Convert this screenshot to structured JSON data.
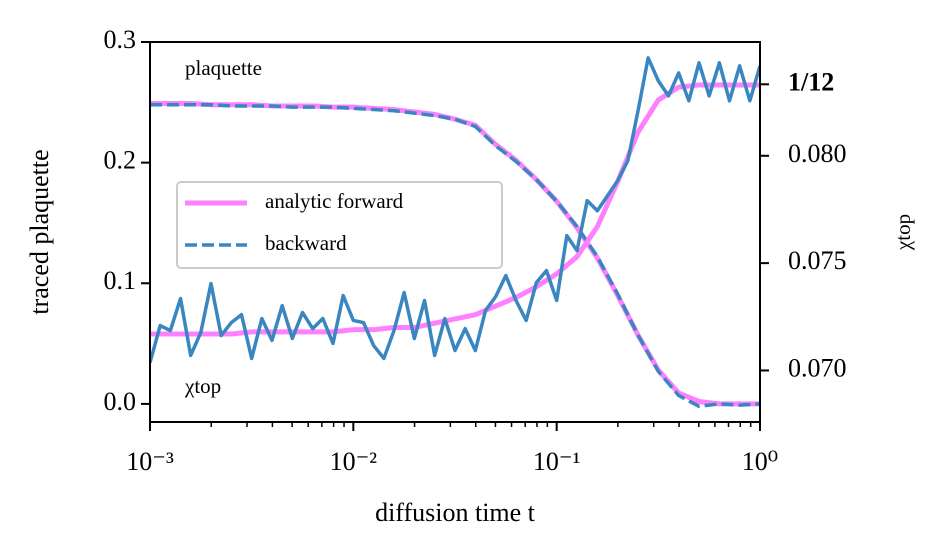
{
  "chart_data": {
    "type": "line",
    "xlabel": "diffusion time t",
    "ylabel": "traced plaquette",
    "y2label": "χtop",
    "annotations": [
      "plaquette",
      "χtop"
    ],
    "xscale": "log",
    "xlim": [
      0.001,
      1.0
    ],
    "xticks": [
      {
        "value": 0.001,
        "label": "10⁻³"
      },
      {
        "value": 0.01,
        "label": "10⁻²"
      },
      {
        "value": 0.1,
        "label": "10⁻¹"
      },
      {
        "value": 1.0,
        "label": "10⁰"
      }
    ],
    "xminorticks": [
      0.002,
      0.003,
      0.004,
      0.005,
      0.006,
      0.007,
      0.008,
      0.009,
      0.02,
      0.03,
      0.04,
      0.05,
      0.06,
      0.07,
      0.08,
      0.09,
      0.2,
      0.3,
      0.4,
      0.5,
      0.6,
      0.7,
      0.8,
      0.9
    ],
    "ylim": [
      -0.015,
      0.3
    ],
    "yticks": [
      {
        "value": 0,
        "label": "0.0"
      },
      0.1,
      0.2,
      0.3
    ],
    "y2lim": [
      0.0676,
      0.0853
    ],
    "y2ticks": [
      {
        "value": 0.07,
        "label": "0.070"
      },
      0.075,
      {
        "value": 0.08,
        "label": "0.080"
      },
      {
        "value": 0.08333,
        "label": "1/12"
      }
    ],
    "legend": "center left",
    "series": [
      {
        "name": "analytic forward",
        "color": "#ff80ff",
        "style": "solid",
        "width": 5,
        "x": [
          0.001,
          0.001259,
          0.001585,
          0.001995,
          0.002512,
          0.003162,
          0.003981,
          0.005012,
          0.00631,
          0.007943,
          0.01,
          0.01259,
          0.01585,
          0.01995,
          0.02512,
          0.03162,
          0.03981,
          0.05012,
          0.0631,
          0.07943,
          0.1,
          0.1259,
          0.1585,
          0.1995,
          0.2512,
          0.3162,
          0.3981,
          0.5012,
          0.631,
          0.7943,
          1.0
        ],
        "values": [
          0.249,
          0.249,
          0.249,
          0.248,
          0.248,
          0.248,
          0.247,
          0.247,
          0.247,
          0.246,
          0.246,
          0.245,
          0.244,
          0.242,
          0.24,
          0.236,
          0.231,
          0.215,
          0.202,
          0.186,
          0.168,
          0.146,
          0.121,
          0.09,
          0.057,
          0.028,
          0.009,
          0.002,
          0.0,
          0.0,
          0.0
        ]
      },
      {
        "name": "backward",
        "color": "#3a86c0",
        "style": "dashed",
        "width": 3.5,
        "x": [
          0.001,
          0.001259,
          0.001585,
          0.001995,
          0.002512,
          0.003162,
          0.003981,
          0.005012,
          0.00631,
          0.007943,
          0.01,
          0.01259,
          0.01585,
          0.01995,
          0.02512,
          0.03162,
          0.03981,
          0.05012,
          0.0631,
          0.07943,
          0.1,
          0.1259,
          0.1585,
          0.1995,
          0.2512,
          0.3162,
          0.3981,
          0.5012,
          0.631,
          0.7943,
          1.0
        ],
        "values": [
          0.248,
          0.248,
          0.248,
          0.248,
          0.247,
          0.247,
          0.247,
          0.246,
          0.246,
          0.246,
          0.245,
          0.244,
          0.243,
          0.241,
          0.239,
          0.236,
          0.23,
          0.214,
          0.201,
          0.186,
          0.168,
          0.147,
          0.122,
          0.091,
          0.057,
          0.027,
          0.007,
          -0.002,
          0.0,
          -0.001,
          0.0
        ]
      },
      {
        "color": "#ff80ff",
        "style": "solid",
        "width": 5,
        "axis": "y2",
        "x": [
          0.001,
          0.001259,
          0.001585,
          0.001995,
          0.002512,
          0.003162,
          0.003981,
          0.005012,
          0.00631,
          0.007943,
          0.01,
          0.01259,
          0.01585,
          0.01995,
          0.02512,
          0.03162,
          0.03981,
          0.05012,
          0.0631,
          0.07943,
          0.1,
          0.1259,
          0.1585,
          0.1995,
          0.2512,
          0.3162,
          0.3981,
          0.5012,
          0.631,
          0.7943,
          1.0
        ],
        "values": [
          0.0717,
          0.0717,
          0.0717,
          0.0717,
          0.0717,
          0.0718,
          0.0718,
          0.0718,
          0.0718,
          0.0718,
          0.0719,
          0.0719,
          0.072,
          0.072,
          0.0722,
          0.0724,
          0.0726,
          0.073,
          0.0734,
          0.0739,
          0.0745,
          0.0753,
          0.0767,
          0.0788,
          0.0811,
          0.0826,
          0.0832,
          0.0833,
          0.0833,
          0.0833,
          0.0833
        ]
      },
      {
        "color": "#3a86c0",
        "style": "solid",
        "width": 3.5,
        "axis": "y2",
        "x": [
          0.001,
          0.001122,
          0.001259,
          0.001413,
          0.001585,
          0.001778,
          0.001995,
          0.002239,
          0.002512,
          0.002818,
          0.003162,
          0.003548,
          0.003981,
          0.004467,
          0.005012,
          0.005623,
          0.00631,
          0.007079,
          0.007943,
          0.008913,
          0.01,
          0.01122,
          0.01259,
          0.01413,
          0.01585,
          0.01778,
          0.01995,
          0.02239,
          0.02512,
          0.02818,
          0.03162,
          0.03548,
          0.03981,
          0.04467,
          0.05012,
          0.05623,
          0.0631,
          0.07079,
          0.07943,
          0.08913,
          0.1,
          0.1122,
          0.1259,
          0.1413,
          0.1585,
          0.1778,
          0.1995,
          0.2239,
          0.2512,
          0.2818,
          0.3162,
          0.3548,
          0.3981,
          0.4467,
          0.5012,
          0.5623,
          0.631,
          0.7079,
          0.7943,
          0.8913,
          1.0
        ],
        "values": [
          0.07037,
          0.07209,
          0.07186,
          0.07335,
          0.0707,
          0.07177,
          0.07405,
          0.07163,
          0.07223,
          0.0726,
          0.07056,
          0.07242,
          0.0714,
          0.07302,
          0.07149,
          0.0727,
          0.07195,
          0.07242,
          0.07126,
          0.07349,
          0.07233,
          0.07223,
          0.07116,
          0.07056,
          0.07186,
          0.07363,
          0.07149,
          0.07326,
          0.0707,
          0.07242,
          0.07093,
          0.07195,
          0.07093,
          0.07279,
          0.07344,
          0.07442,
          0.07326,
          0.07233,
          0.07409,
          0.07465,
          0.07326,
          0.07628,
          0.07558,
          0.07791,
          0.07744,
          0.07814,
          0.07884,
          0.07977,
          0.08209,
          0.08456,
          0.08349,
          0.08279,
          0.08386,
          0.08256,
          0.08433,
          0.08279,
          0.08433,
          0.08256,
          0.08419,
          0.08256,
          0.08419
        ]
      }
    ]
  }
}
